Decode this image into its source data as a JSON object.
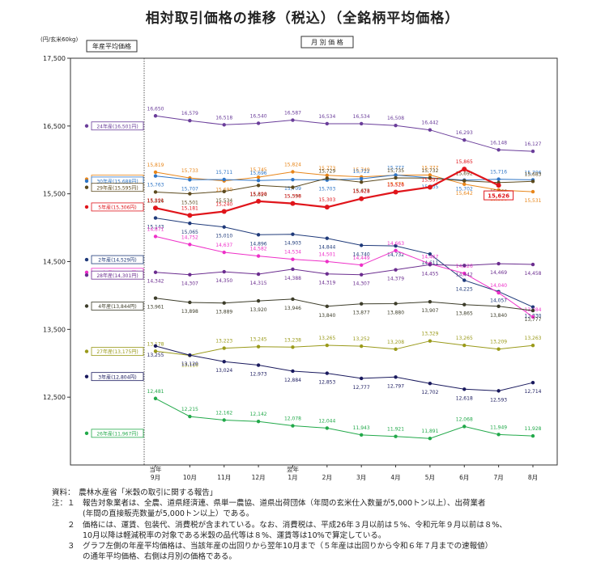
{
  "title": "相対取引価格の推移（税込）（全銘柄平均価格）",
  "unit_label": "(円/玄米60kg)",
  "chart_data": {
    "type": "line",
    "left_panel_label": "年産平均価格",
    "right_panel_label": "月 別 価 格",
    "ylim": [
      11500,
      17500
    ],
    "yticks": [
      "17,500",
      "16,500",
      "15,500",
      "14,500",
      "13,500",
      "12,500"
    ],
    "ytick_values": [
      17500,
      16500,
      15500,
      14500,
      13500,
      12500
    ],
    "grid": false,
    "x_top": [
      "当年",
      "",
      "",
      "",
      "翌年",
      "",
      "",
      "",
      "",
      "",
      "",
      ""
    ],
    "x": [
      "9月",
      "10月",
      "11月",
      "12月",
      "1月",
      "2月",
      "3月",
      "4月",
      "5月",
      "6月",
      "7月",
      "8月"
    ],
    "series": [
      {
        "name": "24年産(16,501円)",
        "avg": 16501,
        "color": "#6a3d9a",
        "bold": false,
        "values": [
          16650,
          16579,
          16518,
          16540,
          16587,
          16534,
          16534,
          16508,
          16442,
          16293,
          16148,
          16127
        ],
        "labels": [
          "16,650",
          "16,579",
          "16,518",
          "16,540",
          "16,587",
          "16,534",
          "16,534",
          "16,508",
          "16,442",
          "16,293",
          "16,148",
          "16,127"
        ]
      },
      {
        "name": "元年産(15,716円)",
        "avg": 15716,
        "color": "#e8861a",
        "bold": false,
        "values": [
          15819,
          15733,
          15690,
          15745,
          15824,
          15773,
          15749,
          15775,
          15777,
          15642,
          15556,
          15531
        ],
        "labels": [
          "15,819",
          "15,733",
          "15,690",
          "15,745",
          "15,824",
          "15,773",
          "15,749",
          "15,775",
          "15,777",
          "15,642",
          "15,556",
          "15,531"
        ]
      },
      {
        "name": "30年産(15,688円)",
        "avg": 15688,
        "color": "#2e75c6",
        "bold": false,
        "values": [
          15763,
          15707,
          15711,
          15696,
          15709,
          15703,
          15722,
          15777,
          15735,
          15702,
          15716,
          15706
        ],
        "labels": [
          "15,763",
          "15,707",
          "15,711",
          "15,696",
          "15,709",
          "15,703",
          "15,722",
          "15,777",
          "15,735",
          "15,702",
          "15,716",
          "15,706"
        ]
      },
      {
        "name": "29年産(15,595円)",
        "avg": 15595,
        "color": "#5c4a1e",
        "bold": false,
        "values": [
          15526,
          15501,
          15534,
          15624,
          15596,
          15729,
          15673,
          15735,
          15732,
          15692,
          15666,
          15683
        ],
        "labels": [
          "15,526",
          "15,501",
          "15,534",
          "15,624",
          "15,596",
          "15,729",
          "15,673",
          "15,735",
          "15,732",
          "15,692",
          "15,666",
          "15,683"
        ]
      },
      {
        "name": "5年産(15,306円)",
        "avg": 15306,
        "color": "#e0151b",
        "bold": true,
        "values": [
          15291,
          15181,
          15240,
          15390,
          15358,
          15303,
          15428,
          15526,
          15597,
          15865,
          15626,
          null
        ],
        "labels": [
          "15,291",
          "15,181",
          "15,240",
          "15,390",
          "15,358",
          "15,303",
          "15,428",
          "15,526",
          "15,597",
          "15,865",
          "15,626",
          ""
        ]
      },
      {
        "name": "2年産(14,529円)",
        "avg": 14529,
        "color": "#1f3a7a",
        "bold": false,
        "values": [
          15143,
          15065,
          15010,
          14896,
          14903,
          14844,
          14740,
          14732,
          14611,
          14225,
          14057,
          13830
        ],
        "labels": [
          "15,143",
          "15,065",
          "15,010",
          "14,896",
          "14,903",
          "14,844",
          "14,740",
          "14,732",
          "14,611",
          "14,225",
          "14,057",
          "13,830"
        ]
      },
      {
        "name": "25年産(14,341円)",
        "avg": 14341,
        "color": "#ee30c8",
        "bold": false,
        "values": [
          14871,
          14752,
          14637,
          14582,
          14534,
          14501,
          14449,
          14663,
          14467,
          14326,
          14040,
          13684
        ],
        "labels": [
          "14,871",
          "14,752",
          "14,637",
          "14,582",
          "14,534",
          "14,501",
          "14,449",
          "14,663",
          "14,467",
          "14,326",
          "14,040",
          "13,684"
        ]
      },
      {
        "name": "28年産(14,301円)",
        "avg": 14301,
        "color": "#6b2d8f",
        "bold": false,
        "values": [
          14342,
          14307,
          14350,
          14315,
          14388,
          14319,
          14307,
          14379,
          14455,
          14442,
          14469,
          14458
        ],
        "labels": [
          "14,342",
          "14,307",
          "14,350",
          "14,315",
          "14,388",
          "14,319",
          "14,307",
          "14,379",
          "14,455",
          "14,442",
          "14,469",
          "14,458"
        ]
      },
      {
        "name": "4年産(13,844円)",
        "avg": 13844,
        "color": "#3d3d2a",
        "bold": false,
        "values": [
          13961,
          13898,
          13889,
          13920,
          13946,
          13840,
          13877,
          13880,
          13907,
          13865,
          13840,
          13777
        ],
        "labels": [
          "13,961",
          "13,898",
          "13,889",
          "13,920",
          "13,946",
          "13,840",
          "13,877",
          "13,880",
          "13,907",
          "13,865",
          "13,840",
          "13,777"
        ]
      },
      {
        "name": "27年産(13,175円)",
        "avg": 13175,
        "color": "#9a9a1a",
        "bold": false,
        "values": [
          13178,
          13116,
          13223,
          13245,
          13238,
          13265,
          13252,
          13208,
          13329,
          13265,
          13209,
          13263
        ],
        "labels": [
          "13,178",
          "13,116",
          "13,223",
          "13,245",
          "13,238",
          "13,265",
          "13,252",
          "13,208",
          "13,329",
          "13,265",
          "13,209",
          "13,263"
        ]
      },
      {
        "name": "3年産(12,804円)",
        "avg": 12804,
        "color": "#1a1a5e",
        "bold": false,
        "values": [
          13255,
          13120,
          13024,
          12973,
          12884,
          12853,
          12777,
          12797,
          12702,
          12618,
          12593,
          12714
        ],
        "labels": [
          "13,255",
          "13,120",
          "13,024",
          "12,973",
          "12,884",
          "12,853",
          "12,777",
          "12,797",
          "12,702",
          "12,618",
          "12,593",
          "12,714"
        ]
      },
      {
        "name": "26年産(11,967円)",
        "avg": 11967,
        "color": "#22a94a",
        "bold": false,
        "values": [
          12481,
          12215,
          12162,
          12142,
          12078,
          12044,
          11943,
          11921,
          11891,
          12068,
          11949,
          11928
        ],
        "labels": [
          "12,481",
          "12,215",
          "12,162",
          "12,142",
          "12,078",
          "12,044",
          "11,943",
          "11,921",
          "11,891",
          "12,068",
          "11,949",
          "11,928"
        ]
      }
    ],
    "highlight_value": "15,626"
  },
  "notes": [
    "資料：　農林水産省「米穀の取引に関する報告」",
    "注：１　報告対象業者は、全農、道県経済連、県単一農協、道県出荷団体（年間の玄米仕入数量が5,000トン以上）、出荷業者",
    "　　　　(年間の直接販売数量が5,000トン以上）である。",
    "　　２　価格には、運賃、包装代、消費税が含まれている。なお、消費税は、平成26年３月以前は５%、令和元年９月以前は８%、",
    "　　　　10月以降は軽減税率の対象である米穀の品代等は８%、運賃等は10%で算定している。",
    "　　３　グラフ左側の年産平均価格は、当該年産の出回りから翌年10月まで（５年産は出回りから令和６年７月までの速報値）",
    "　　　　の通年平均価格、右側は月別の価格である。"
  ]
}
